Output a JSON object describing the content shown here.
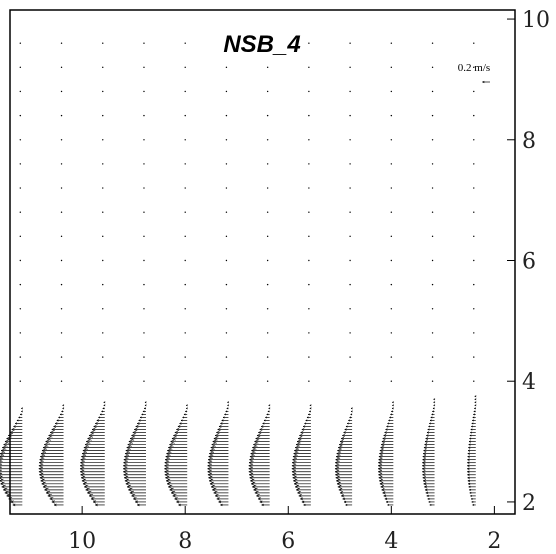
{
  "chart_data": {
    "type": "quiver",
    "title": "NSB_4",
    "xlabel": "",
    "ylabel": "",
    "x_axis": {
      "direction": "decreasing-to-right",
      "xlim": [
        11.4,
        1.6
      ],
      "ticks": [
        10,
        8,
        6,
        4,
        2
      ],
      "tick_labels": [
        "10",
        "8",
        "6",
        "4",
        "2"
      ],
      "position": "bottom"
    },
    "y_axis": {
      "ylim": [
        1.8,
        10.15
      ],
      "ticks": [
        2,
        4,
        6,
        8,
        10
      ],
      "tick_labels": [
        "2",
        "4",
        "6",
        "8",
        "10"
      ],
      "position": "right"
    },
    "scale_key": {
      "label": "0.2 m/s",
      "magnitude": 0.2,
      "direction": "left",
      "placement": "top-right"
    },
    "grid": false,
    "profile_columns_x": [
      11.2,
      10.4,
      9.6,
      8.8,
      8.0,
      7.2,
      6.4,
      5.6,
      4.8,
      4.0,
      3.2,
      2.4
    ],
    "dot_rows_y": [
      9.6,
      9.2,
      8.8,
      8.4,
      8.0,
      7.6,
      7.2,
      6.8,
      6.4,
      6.0,
      5.6,
      5.2,
      4.8,
      4.4,
      4.0
    ],
    "dense_profile": {
      "y_bottom": 1.95,
      "y_top": 3.9,
      "y_step": 0.05,
      "peak_y": 2.55,
      "column_peak_speed_ms": [
        0.13,
        0.13,
        0.13,
        0.12,
        0.12,
        0.11,
        0.11,
        0.1,
        0.09,
        0.08,
        0.065,
        0.045
      ],
      "column_top_y": [
        3.55,
        3.6,
        3.65,
        3.65,
        3.6,
        3.65,
        3.6,
        3.6,
        3.55,
        3.65,
        3.7,
        3.75
      ],
      "direction": "left"
    },
    "reference_line": {
      "x": 11.4,
      "y_from": 3.4,
      "y_to": 9.95
    }
  }
}
